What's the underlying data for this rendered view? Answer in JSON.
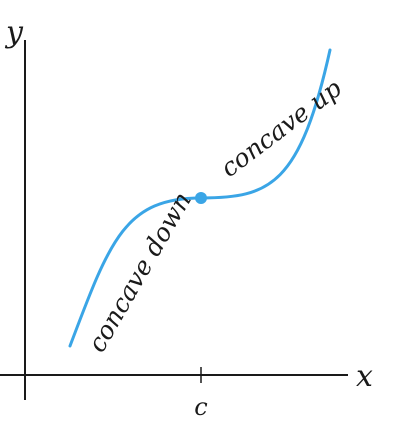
{
  "axes": {
    "x_label": "x",
    "y_label": "y",
    "axis_color": "#1a1a1a"
  },
  "tick": {
    "label": "c"
  },
  "curve": {
    "color": "#3aa5e6",
    "point_color": "#3aa5e6"
  },
  "annotations": {
    "left": "concave down",
    "right": "concave up"
  }
}
